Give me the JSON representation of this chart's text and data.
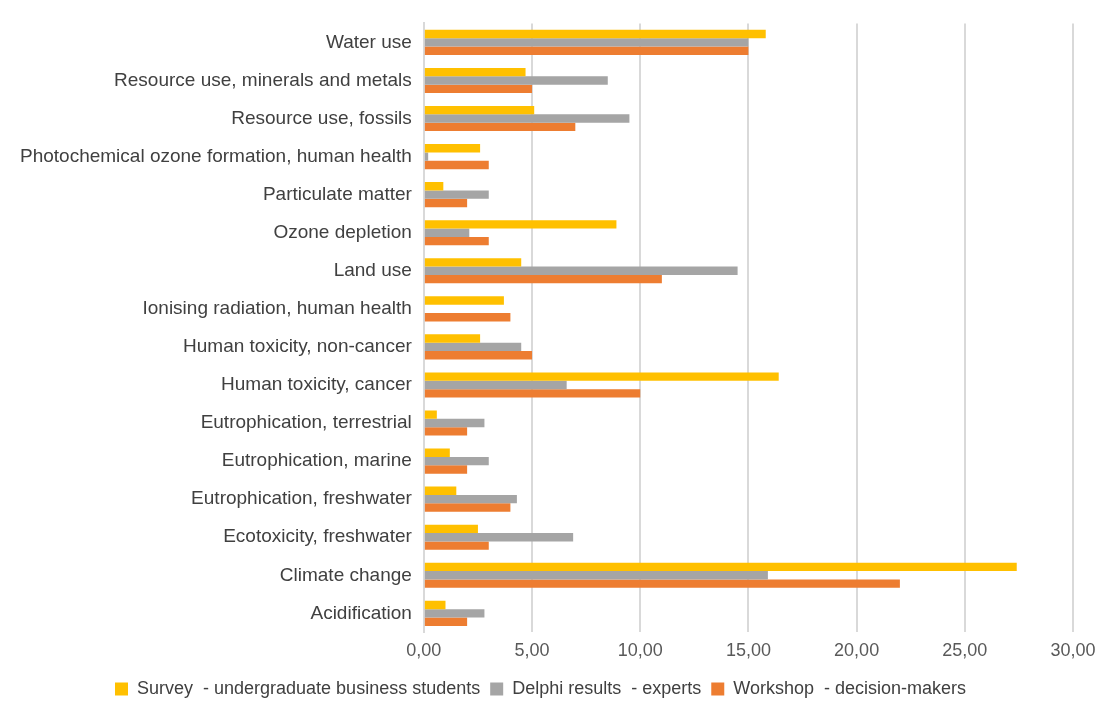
{
  "chart_data": {
    "type": "bar",
    "orientation": "horizontal",
    "categories": [
      "Water use",
      "Resource use, minerals and metals",
      "Resource use, fossils",
      "Photochemical ozone formation, human health",
      "Particulate matter",
      "Ozone depletion",
      "Land use",
      "Ionising radiation, human health",
      "Human toxicity, non-cancer",
      "Human toxicity, cancer",
      "Eutrophication, terrestrial",
      "Eutrophication, marine",
      "Eutrophication, freshwater",
      "Ecotoxicity, freshwater",
      "Climate change",
      "Acidification"
    ],
    "series": [
      {
        "name": "Survey  - undergraduate business students",
        "color": "#ffc000",
        "values": [
          15.8,
          4.7,
          5.1,
          2.6,
          0.9,
          8.9,
          4.5,
          3.7,
          2.6,
          16.4,
          0.6,
          1.2,
          1.5,
          2.5,
          27.4,
          1.0
        ]
      },
      {
        "name": "Delphi results  - experts",
        "color": "#a5a5a5",
        "values": [
          15.0,
          8.5,
          9.5,
          0.2,
          3.0,
          2.1,
          14.5,
          0,
          4.5,
          6.6,
          2.8,
          3.0,
          4.3,
          6.9,
          15.9,
          2.8
        ]
      },
      {
        "name": "Workshop  - decision-makers",
        "color": "#ed7d31",
        "values": [
          15.0,
          5.0,
          7.0,
          3.0,
          2.0,
          3.0,
          11.0,
          4.0,
          5.0,
          10.0,
          2.0,
          2.0,
          4.0,
          3.0,
          22.0,
          2.0
        ]
      }
    ],
    "xlim": [
      0,
      30
    ],
    "xticks": [
      {
        "value": 0,
        "label": "0,00"
      },
      {
        "value": 5,
        "label": "5,00"
      },
      {
        "value": 10,
        "label": "10,00"
      },
      {
        "value": 15,
        "label": "15,00"
      },
      {
        "value": 20,
        "label": "20,00"
      },
      {
        "value": 25,
        "label": "25,00"
      },
      {
        "value": 30,
        "label": "30,00"
      }
    ],
    "grid": "x",
    "legend": "bottom"
  }
}
